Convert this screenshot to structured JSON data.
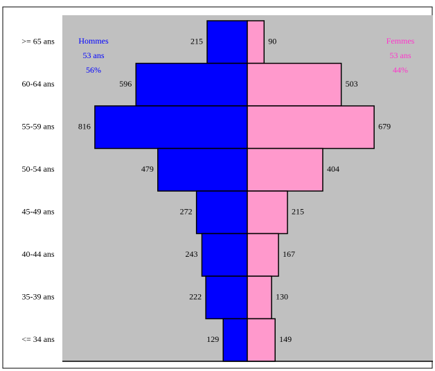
{
  "chart_data": {
    "type": "pyramid",
    "categories": [
      ">= 65 ans",
      "60-64 ans",
      "55-59 ans",
      "50-54 ans",
      "45-49 ans",
      "40-44 ans",
      "35-39 ans",
      "<= 34 ans"
    ],
    "xlim": [
      0,
      990
    ],
    "series": [
      {
        "name": "Hommes",
        "side": "left",
        "color": "#0000ff",
        "annotations": [
          "53 ans",
          "56%"
        ],
        "values": [
          215,
          596,
          816,
          479,
          272,
          243,
          222,
          129
        ]
      },
      {
        "name": "Femmes",
        "side": "right",
        "color": "#ff99cc",
        "text_color": "#ff33cc",
        "annotations": [
          "53 ans",
          "44%"
        ],
        "values": [
          90,
          503,
          679,
          404,
          215,
          167,
          130,
          149
        ]
      }
    ]
  }
}
